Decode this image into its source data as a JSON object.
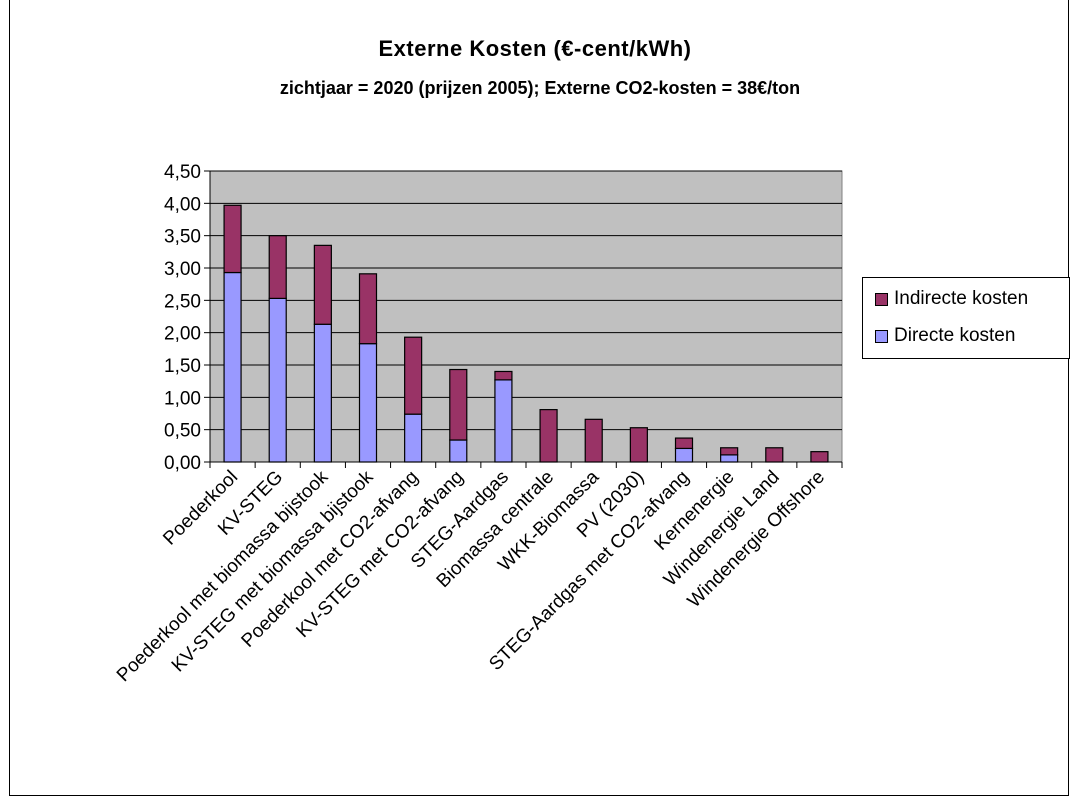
{
  "chart_data": {
    "type": "bar",
    "stacked": true,
    "title": "Externe Kosten (€-cent/kWh)",
    "subtitle": "zichtjaar = 2020 (prijzen 2005); Externe CO2-kosten = 38€/ton",
    "xlabel": "",
    "ylabel": "",
    "ylim": [
      0,
      4.5
    ],
    "yticks": [
      "0,00",
      "0,50",
      "1,00",
      "1,50",
      "2,00",
      "2,50",
      "3,00",
      "3,50",
      "4,00",
      "4,50"
    ],
    "grid": true,
    "plot_background": "#C0C0C0",
    "legend_position": "right",
    "categories": [
      "Poederkool",
      "KV-STEG",
      "Poederkool met biomassa bijstook",
      "KV-STEG met biomassa bijstook",
      "Poederkool met CO2-afvang",
      "KV-STEG met CO2-afvang",
      "STEG-Aardgas",
      "Biomassa centrale",
      "WKK-Biomassa",
      "PV (2030)",
      "STEG-Aardgas met CO2-afvang",
      "Kernenergie",
      "Windenergie Land",
      "Windenergie Offshore"
    ],
    "series": [
      {
        "name": "Directe kosten",
        "color": "#9999FF",
        "values": [
          2.93,
          2.53,
          2.13,
          1.83,
          0.74,
          0.34,
          1.27,
          0,
          0,
          0,
          0.21,
          0.11,
          0,
          0
        ]
      },
      {
        "name": "Indirecte kosten",
        "color": "#993366",
        "values": [
          1.04,
          0.97,
          1.22,
          1.08,
          1.19,
          1.09,
          0.13,
          0.81,
          0.66,
          0.53,
          0.16,
          0.11,
          0.22,
          0.16
        ]
      }
    ]
  }
}
